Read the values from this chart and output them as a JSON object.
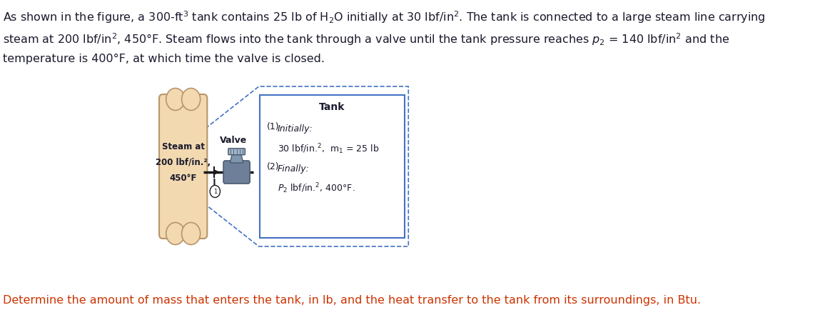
{
  "title_lines": [
    "As shown in the figure, a 300-ft$^3$ tank contains 25 lb of H$_2$O initially at 30 lbf/in$^2$. The tank is connected to a large steam line carrying",
    "steam at 200 lbf/in$^2$, 450°F. Steam flows into the tank through a valve until the tank pressure reaches $p_2$ = 140 lbf/in$^2$ and the",
    "temperature is 400°F, at which time the valve is closed."
  ],
  "bottom_text": "Determine the amount of mass that enters the tank, in lb, and the heat transfer to the tank from its surroundings, in Btu.",
  "steam_label_lines": [
    "Steam at",
    "200 lbf/in.²,",
    "450°F"
  ],
  "tank_label": "Tank",
  "valve_label": "Valve",
  "pipe_color": "#1a1a1a",
  "steam_pipe_fill": "#f2d9b0",
  "steam_pipe_stroke": "#b8956a",
  "valve_body_color": "#6e8099",
  "valve_dark": "#4a5a6e",
  "valve_mid": "#8096ae",
  "valve_light": "#a0b4c8",
  "tank_border_color": "#4472c4",
  "tank_fill": "#ffffff",
  "dashed_color": "#4472c4",
  "title_color": "#1a1a2e",
  "tank_text_color": "#1a1a2e",
  "bottom_text_color": "#cc3300",
  "bg_color": "#ffffff",
  "font_size_title": 11.5,
  "font_size_diagram": 9.5
}
